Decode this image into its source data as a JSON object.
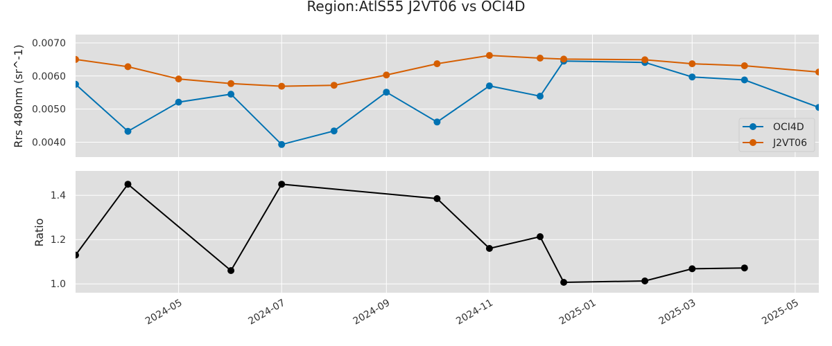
{
  "chart_data": {
    "title": "Region:AtlS55 J2VT06 vs OCI4D",
    "type": "line",
    "panels": [
      {
        "id": "rrs",
        "ylabel": "Rrs 480nm (sr^-1)",
        "ylim": [
          0.00355,
          0.00725
        ],
        "yticks": [
          0.004,
          0.005,
          0.006,
          0.007
        ],
        "ytick_labels": [
          "0.0040",
          "0.0050",
          "0.0060",
          "0.0070"
        ],
        "grid": true,
        "legend": {
          "position": "lower-right",
          "entries": [
            "OCI4D",
            "J2VT06"
          ]
        },
        "series": [
          {
            "name": "OCI4D",
            "color": "#0072b2",
            "x": [
              "2024-03-01",
              "2024-04-01",
              "2024-05-01",
              "2024-06-01",
              "2024-07-01",
              "2024-08-01",
              "2024-09-01",
              "2024-10-01",
              "2024-11-01",
              "2024-12-01",
              "2024-12-15",
              "2025-02-01",
              "2025-03-01",
              "2025-04-01",
              "2025-05-15"
            ],
            "y": [
              0.00575,
              0.00433,
              0.00521,
              0.00545,
              0.00393,
              0.00434,
              0.00551,
              0.00461,
              0.0057,
              0.00539,
              0.00645,
              0.00641,
              0.00597,
              0.00588,
              0.00505
            ]
          },
          {
            "name": "J2VT06",
            "color": "#d55e00",
            "x": [
              "2024-03-01",
              "2024-04-01",
              "2024-05-01",
              "2024-06-01",
              "2024-07-01",
              "2024-08-01",
              "2024-09-01",
              "2024-10-01",
              "2024-11-01",
              "2024-12-01",
              "2024-12-15",
              "2025-02-01",
              "2025-03-01",
              "2025-04-01",
              "2025-05-15"
            ],
            "y": [
              0.0065,
              0.00628,
              0.00591,
              0.00577,
              0.00569,
              0.00572,
              0.00603,
              0.00637,
              0.00662,
              0.00654,
              0.00651,
              0.00649,
              0.00637,
              0.00631,
              0.00612
            ]
          }
        ]
      },
      {
        "id": "ratio",
        "ylabel": "Ratio",
        "ylim": [
          0.96,
          1.51
        ],
        "yticks": [
          1.0,
          1.2,
          1.4
        ],
        "ytick_labels": [
          "1.0",
          "1.2",
          "1.4"
        ],
        "grid": true,
        "series": [
          {
            "name": "",
            "color": "#000000",
            "x": [
              "2024-03-01",
              "2024-04-01",
              "2024-06-01",
              "2024-07-01",
              "2024-10-01",
              "2024-11-01",
              "2024-12-01",
              "2024-12-15",
              "2025-02-01",
              "2025-03-01",
              "2025-04-01"
            ],
            "y": [
              1.13,
              1.45,
              1.06,
              1.45,
              1.385,
              1.16,
              1.213,
              1.007,
              1.013,
              1.068,
              1.072
            ]
          }
        ]
      }
    ],
    "xlim": [
      "2024-03-01",
      "2025-05-15"
    ],
    "xticks": [
      "2024-05-01",
      "2024-07-01",
      "2024-09-01",
      "2024-11-01",
      "2025-01-01",
      "2025-03-01",
      "2025-05-01"
    ],
    "xtick_labels": [
      "2024-05",
      "2024-07",
      "2024-09",
      "2024-11",
      "2025-01",
      "2025-03",
      "2025-05"
    ],
    "background_color": "#dfdfdf",
    "grid_color": "#ffffff"
  }
}
